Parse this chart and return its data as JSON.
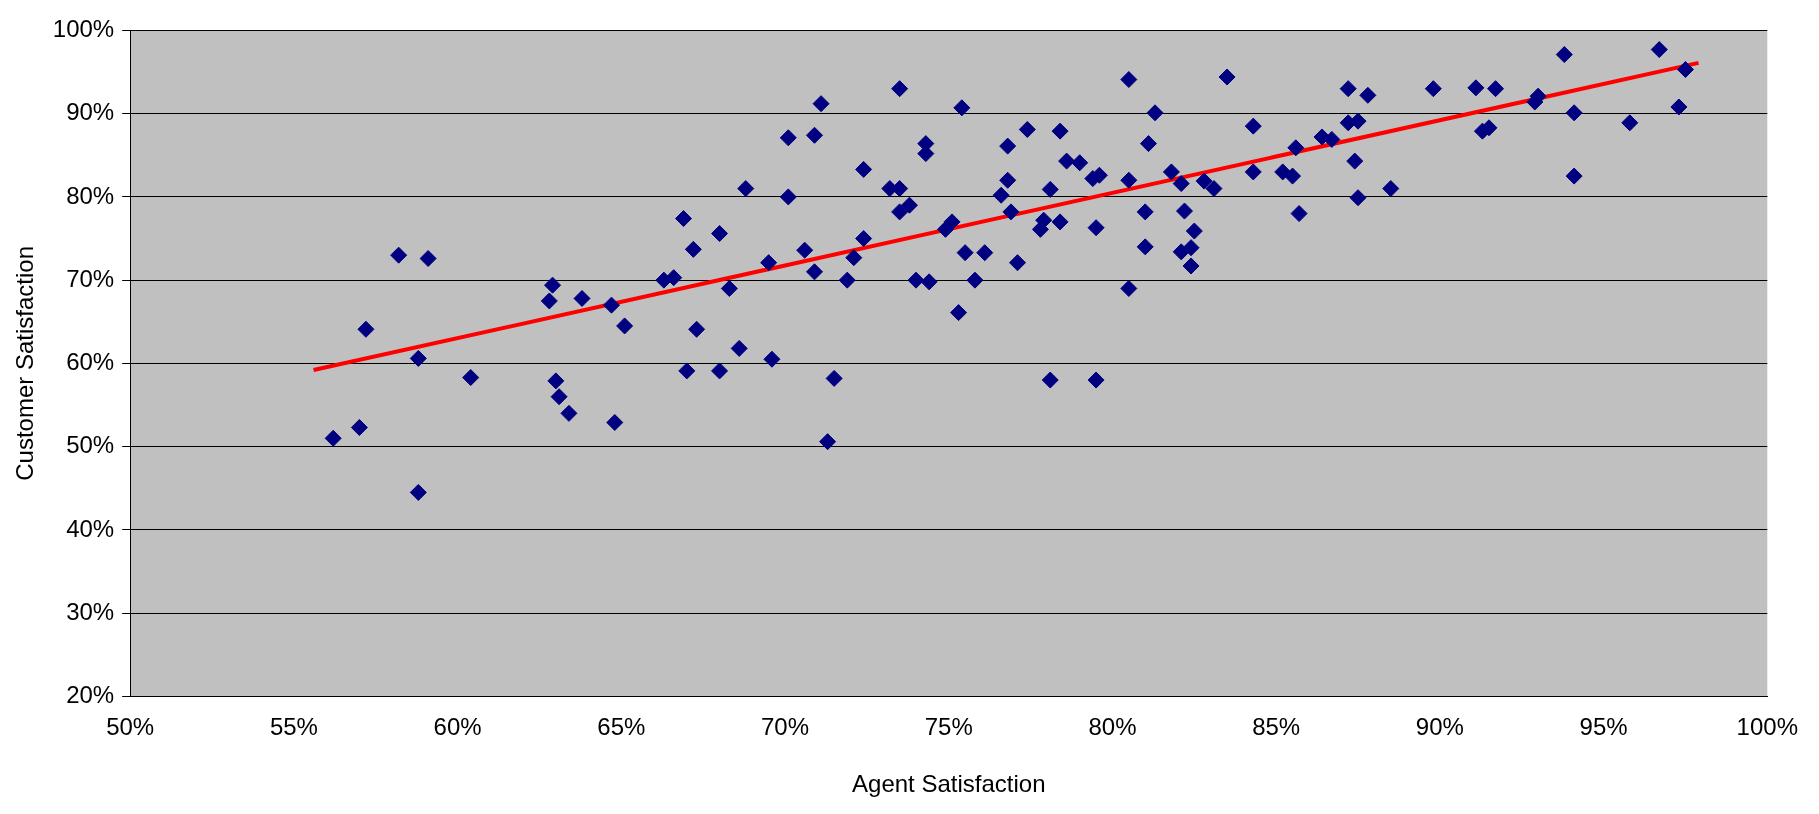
{
  "chart_data": {
    "type": "scatter",
    "xlabel": "Agent Satisfaction",
    "ylabel": "Customer Satisfaction",
    "xlim": [
      50,
      100
    ],
    "ylim": [
      20,
      100
    ],
    "xticks": [
      {
        "value": 50,
        "label": "50%"
      },
      {
        "value": 55,
        "label": "55%"
      },
      {
        "value": 60,
        "label": "60%"
      },
      {
        "value": 65,
        "label": "65%"
      },
      {
        "value": 70,
        "label": "70%"
      },
      {
        "value": 75,
        "label": "75%"
      },
      {
        "value": 80,
        "label": "80%"
      },
      {
        "value": 85,
        "label": "85%"
      },
      {
        "value": 90,
        "label": "90%"
      },
      {
        "value": 95,
        "label": "95%"
      },
      {
        "value": 100,
        "label": "100%"
      }
    ],
    "yticks": [
      {
        "value": 20,
        "label": "20%"
      },
      {
        "value": 30,
        "label": "30%"
      },
      {
        "value": 40,
        "label": "40%"
      },
      {
        "value": 50,
        "label": "50%"
      },
      {
        "value": 60,
        "label": "60%"
      },
      {
        "value": 70,
        "label": "70%"
      },
      {
        "value": 80,
        "label": "80%"
      },
      {
        "value": 90,
        "label": "90%"
      },
      {
        "value": 100,
        "label": "100%"
      }
    ],
    "grid": "y",
    "legend": false,
    "series": [
      {
        "type": "scatter",
        "color": "#000080",
        "marker": "diamond",
        "x": [
          56.2,
          57.0,
          57.2,
          58.2,
          59.1,
          58.8,
          58.8,
          60.4,
          62.8,
          62.9,
          63.0,
          63.1,
          63.4,
          63.8,
          64.7,
          65.1,
          64.8,
          66.9,
          66.3,
          66.6,
          67.2,
          67.0,
          67.3,
          68.0,
          68.0,
          68.3,
          68.6,
          68.8,
          69.5,
          69.6,
          70.1,
          70.1,
          70.6,
          70.9,
          70.9,
          71.1,
          71.5,
          71.3,
          71.9,
          72.1,
          72.4,
          72.4,
          73.2,
          73.5,
          73.5,
          73.5,
          73.8,
          74.0,
          74.4,
          74.3,
          74.3,
          74.9,
          75.1,
          75.4,
          75.5,
          75.3,
          75.8,
          76.1,
          76.6,
          76.8,
          76.9,
          76.8,
          77.4,
          77.1,
          77.8,
          77.9,
          78.1,
          78.4,
          78.4,
          78.6,
          79.0,
          79.4,
          79.6,
          79.5,
          78.1,
          79.5,
          80.5,
          80.5,
          80.5,
          81.0,
          81.0,
          81.1,
          81.3,
          81.8,
          82.1,
          82.2,
          82.1,
          82.4,
          82.4,
          82.5,
          82.8,
          83.1,
          83.5,
          84.3,
          84.3,
          85.2,
          85.5,
          85.6,
          85.7,
          86.4,
          86.7,
          87.2,
          87.4,
          87.5,
          87.5,
          87.8,
          87.2,
          88.5,
          89.8,
          91.1,
          91.3,
          91.5,
          91.7,
          92.9,
          93.0,
          93.8,
          94.1,
          94.1,
          95.8,
          96.7,
          97.3,
          97.5
        ],
        "values": [
          51.0,
          52.3,
          64.1,
          73.0,
          72.6,
          60.6,
          44.5,
          58.3,
          67.5,
          69.4,
          57.9,
          56.0,
          54.0,
          67.8,
          67.0,
          64.5,
          52.9,
          77.4,
          70.0,
          70.3,
          73.7,
          59.1,
          64.1,
          75.6,
          59.1,
          69.0,
          61.8,
          81.0,
          72.1,
          60.5,
          87.1,
          80.0,
          73.6,
          87.4,
          71.0,
          91.2,
          58.2,
          50.6,
          70.0,
          72.7,
          83.3,
          75.0,
          81.0,
          93.0,
          81.0,
          78.2,
          79.0,
          70.0,
          69.8,
          86.4,
          85.2,
          76.1,
          77.0,
          90.7,
          73.3,
          66.1,
          70.0,
          73.3,
          80.2,
          82.0,
          78.2,
          86.1,
          88.1,
          72.1,
          76.1,
          77.2,
          80.9,
          87.9,
          77.0,
          84.3,
          84.1,
          82.2,
          82.6,
          76.3,
          58.0,
          58.0,
          94.1,
          82.0,
          69.0,
          78.2,
          74.0,
          86.4,
          90.1,
          83.0,
          81.6,
          78.3,
          73.4,
          73.9,
          71.7,
          75.9,
          81.9,
          81.0,
          94.4,
          83.0,
          88.5,
          83.0,
          82.5,
          85.9,
          78.0,
          87.2,
          86.9,
          88.9,
          84.3,
          89.1,
          79.9,
          92.2,
          93.0,
          81.0,
          93.0,
          93.1,
          87.9,
          88.3,
          93.0,
          91.4,
          92.1,
          97.1,
          82.5,
          90.1,
          88.9,
          97.7,
          90.8,
          95.3
        ]
      },
      {
        "type": "line",
        "color": "#ff0000",
        "marker": "none",
        "line_style": "solid",
        "x": [
          55.6,
          97.9
        ],
        "values": [
          59.2,
          96.1
        ]
      }
    ]
  }
}
